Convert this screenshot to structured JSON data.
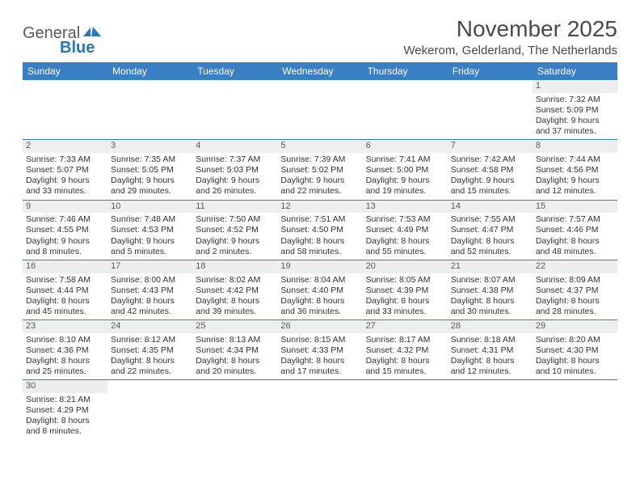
{
  "logo": {
    "text1": "General",
    "text2": "Blue"
  },
  "title": "November 2025",
  "location": "Wekerom, Gelderland, The Netherlands",
  "colors": {
    "header_bg": "#3a7fc4",
    "header_text": "#ffffff",
    "daynum_bg": "#eeeeee",
    "row_border": "#3a7fc4",
    "logo_blue": "#2a75bb",
    "text": "#4a4a4a"
  },
  "day_headers": [
    "Sunday",
    "Monday",
    "Tuesday",
    "Wednesday",
    "Thursday",
    "Friday",
    "Saturday"
  ],
  "weeks": [
    [
      {
        "num": "",
        "sunrise": "",
        "sunset": "",
        "daylight": ""
      },
      {
        "num": "",
        "sunrise": "",
        "sunset": "",
        "daylight": ""
      },
      {
        "num": "",
        "sunrise": "",
        "sunset": "",
        "daylight": ""
      },
      {
        "num": "",
        "sunrise": "",
        "sunset": "",
        "daylight": ""
      },
      {
        "num": "",
        "sunrise": "",
        "sunset": "",
        "daylight": ""
      },
      {
        "num": "",
        "sunrise": "",
        "sunset": "",
        "daylight": ""
      },
      {
        "num": "1",
        "sunrise": "Sunrise: 7:32 AM",
        "sunset": "Sunset: 5:09 PM",
        "daylight": "Daylight: 9 hours and 37 minutes."
      }
    ],
    [
      {
        "num": "2",
        "sunrise": "Sunrise: 7:33 AM",
        "sunset": "Sunset: 5:07 PM",
        "daylight": "Daylight: 9 hours and 33 minutes."
      },
      {
        "num": "3",
        "sunrise": "Sunrise: 7:35 AM",
        "sunset": "Sunset: 5:05 PM",
        "daylight": "Daylight: 9 hours and 29 minutes."
      },
      {
        "num": "4",
        "sunrise": "Sunrise: 7:37 AM",
        "sunset": "Sunset: 5:03 PM",
        "daylight": "Daylight: 9 hours and 26 minutes."
      },
      {
        "num": "5",
        "sunrise": "Sunrise: 7:39 AM",
        "sunset": "Sunset: 5:02 PM",
        "daylight": "Daylight: 9 hours and 22 minutes."
      },
      {
        "num": "6",
        "sunrise": "Sunrise: 7:41 AM",
        "sunset": "Sunset: 5:00 PM",
        "daylight": "Daylight: 9 hours and 19 minutes."
      },
      {
        "num": "7",
        "sunrise": "Sunrise: 7:42 AM",
        "sunset": "Sunset: 4:58 PM",
        "daylight": "Daylight: 9 hours and 15 minutes."
      },
      {
        "num": "8",
        "sunrise": "Sunrise: 7:44 AM",
        "sunset": "Sunset: 4:56 PM",
        "daylight": "Daylight: 9 hours and 12 minutes."
      }
    ],
    [
      {
        "num": "9",
        "sunrise": "Sunrise: 7:46 AM",
        "sunset": "Sunset: 4:55 PM",
        "daylight": "Daylight: 9 hours and 8 minutes."
      },
      {
        "num": "10",
        "sunrise": "Sunrise: 7:48 AM",
        "sunset": "Sunset: 4:53 PM",
        "daylight": "Daylight: 9 hours and 5 minutes."
      },
      {
        "num": "11",
        "sunrise": "Sunrise: 7:50 AM",
        "sunset": "Sunset: 4:52 PM",
        "daylight": "Daylight: 9 hours and 2 minutes."
      },
      {
        "num": "12",
        "sunrise": "Sunrise: 7:51 AM",
        "sunset": "Sunset: 4:50 PM",
        "daylight": "Daylight: 8 hours and 58 minutes."
      },
      {
        "num": "13",
        "sunrise": "Sunrise: 7:53 AM",
        "sunset": "Sunset: 4:49 PM",
        "daylight": "Daylight: 8 hours and 55 minutes."
      },
      {
        "num": "14",
        "sunrise": "Sunrise: 7:55 AM",
        "sunset": "Sunset: 4:47 PM",
        "daylight": "Daylight: 8 hours and 52 minutes."
      },
      {
        "num": "15",
        "sunrise": "Sunrise: 7:57 AM",
        "sunset": "Sunset: 4:46 PM",
        "daylight": "Daylight: 8 hours and 48 minutes."
      }
    ],
    [
      {
        "num": "16",
        "sunrise": "Sunrise: 7:58 AM",
        "sunset": "Sunset: 4:44 PM",
        "daylight": "Daylight: 8 hours and 45 minutes."
      },
      {
        "num": "17",
        "sunrise": "Sunrise: 8:00 AM",
        "sunset": "Sunset: 4:43 PM",
        "daylight": "Daylight: 8 hours and 42 minutes."
      },
      {
        "num": "18",
        "sunrise": "Sunrise: 8:02 AM",
        "sunset": "Sunset: 4:42 PM",
        "daylight": "Daylight: 8 hours and 39 minutes."
      },
      {
        "num": "19",
        "sunrise": "Sunrise: 8:04 AM",
        "sunset": "Sunset: 4:40 PM",
        "daylight": "Daylight: 8 hours and 36 minutes."
      },
      {
        "num": "20",
        "sunrise": "Sunrise: 8:05 AM",
        "sunset": "Sunset: 4:39 PM",
        "daylight": "Daylight: 8 hours and 33 minutes."
      },
      {
        "num": "21",
        "sunrise": "Sunrise: 8:07 AM",
        "sunset": "Sunset: 4:38 PM",
        "daylight": "Daylight: 8 hours and 30 minutes."
      },
      {
        "num": "22",
        "sunrise": "Sunrise: 8:09 AM",
        "sunset": "Sunset: 4:37 PM",
        "daylight": "Daylight: 8 hours and 28 minutes."
      }
    ],
    [
      {
        "num": "23",
        "sunrise": "Sunrise: 8:10 AM",
        "sunset": "Sunset: 4:36 PM",
        "daylight": "Daylight: 8 hours and 25 minutes."
      },
      {
        "num": "24",
        "sunrise": "Sunrise: 8:12 AM",
        "sunset": "Sunset: 4:35 PM",
        "daylight": "Daylight: 8 hours and 22 minutes."
      },
      {
        "num": "25",
        "sunrise": "Sunrise: 8:13 AM",
        "sunset": "Sunset: 4:34 PM",
        "daylight": "Daylight: 8 hours and 20 minutes."
      },
      {
        "num": "26",
        "sunrise": "Sunrise: 8:15 AM",
        "sunset": "Sunset: 4:33 PM",
        "daylight": "Daylight: 8 hours and 17 minutes."
      },
      {
        "num": "27",
        "sunrise": "Sunrise: 8:17 AM",
        "sunset": "Sunset: 4:32 PM",
        "daylight": "Daylight: 8 hours and 15 minutes."
      },
      {
        "num": "28",
        "sunrise": "Sunrise: 8:18 AM",
        "sunset": "Sunset: 4:31 PM",
        "daylight": "Daylight: 8 hours and 12 minutes."
      },
      {
        "num": "29",
        "sunrise": "Sunrise: 8:20 AM",
        "sunset": "Sunset: 4:30 PM",
        "daylight": "Daylight: 8 hours and 10 minutes."
      }
    ],
    [
      {
        "num": "30",
        "sunrise": "Sunrise: 8:21 AM",
        "sunset": "Sunset: 4:29 PM",
        "daylight": "Daylight: 8 hours and 8 minutes."
      },
      {
        "num": "",
        "sunrise": "",
        "sunset": "",
        "daylight": ""
      },
      {
        "num": "",
        "sunrise": "",
        "sunset": "",
        "daylight": ""
      },
      {
        "num": "",
        "sunrise": "",
        "sunset": "",
        "daylight": ""
      },
      {
        "num": "",
        "sunrise": "",
        "sunset": "",
        "daylight": ""
      },
      {
        "num": "",
        "sunrise": "",
        "sunset": "",
        "daylight": ""
      },
      {
        "num": "",
        "sunrise": "",
        "sunset": "",
        "daylight": ""
      }
    ]
  ]
}
